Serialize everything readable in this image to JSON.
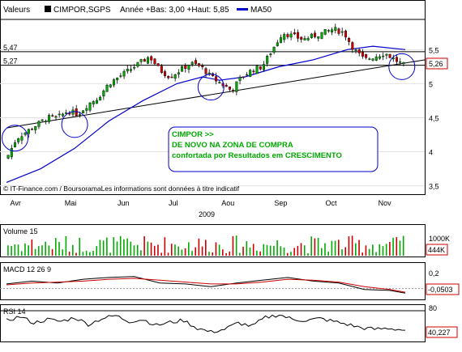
{
  "header": {
    "valeurs_label": "Valeurs",
    "symbol": "CIMPOR,SGPS",
    "range_text": "Année +Bas: 3,00 +Haut: 5,85",
    "ma_label": "MA50",
    "ma_color": "#0000cc"
  },
  "footer": {
    "credit": "© IT-Finance.com / BoursoramaLes informations sont données à titre indicatif"
  },
  "annotation": {
    "line1": "CIMPOR >>",
    "line2": "DE NOVO NA ZONA DE COMPRA",
    "line3": "confortada por Resultados em  CRESCIMENTO",
    "color": "#00aa00",
    "border_color": "#0000cc"
  },
  "chart_data": [
    {
      "type": "candlestick",
      "year_label": "2009",
      "x_labels": [
        "Avr",
        "Mai",
        "Jun",
        "Jul",
        "Aou",
        "Sep",
        "Oct",
        "Nov"
      ],
      "y_ticks": [
        "5,5",
        "5",
        "4,5",
        "4",
        "3,5"
      ],
      "y_tick_values": [
        5.5,
        5.0,
        4.5,
        4.0,
        3.5
      ],
      "ylim": [
        3.4,
        5.92
      ],
      "h_levels": [
        "5,47",
        "5,27"
      ],
      "h_level_values": [
        5.47,
        5.27
      ],
      "last_value": "5,26",
      "last_value_num": 5.26,
      "up_color": "#00aa00",
      "down_color": "#cc0000",
      "close_path": [
        [
          0,
          3.9
        ],
        [
          6,
          4.2
        ],
        [
          12,
          4.3
        ],
        [
          18,
          4.4
        ],
        [
          24,
          4.5
        ],
        [
          30,
          4.5
        ],
        [
          36,
          4.6
        ],
        [
          42,
          4.55
        ],
        [
          48,
          4.7
        ],
        [
          54,
          4.8
        ],
        [
          60,
          5.0
        ],
        [
          66,
          5.1
        ],
        [
          72,
          5.2
        ],
        [
          78,
          5.3
        ],
        [
          84,
          5.4
        ],
        [
          90,
          5.2
        ],
        [
          96,
          5.1
        ],
        [
          102,
          5.2
        ],
        [
          108,
          5.3
        ],
        [
          114,
          5.25
        ],
        [
          120,
          5.1
        ],
        [
          126,
          5.0
        ],
        [
          132,
          4.9
        ],
        [
          138,
          5.1
        ],
        [
          144,
          5.2
        ],
        [
          150,
          5.25
        ],
        [
          156,
          5.5
        ],
        [
          162,
          5.75
        ],
        [
          168,
          5.7
        ],
        [
          174,
          5.65
        ],
        [
          180,
          5.7
        ],
        [
          186,
          5.75
        ],
        [
          192,
          5.8
        ],
        [
          198,
          5.75
        ],
        [
          204,
          5.5
        ],
        [
          210,
          5.35
        ],
        [
          216,
          5.4
        ],
        [
          222,
          5.45
        ],
        [
          228,
          5.35
        ],
        [
          234,
          5.26
        ]
      ],
      "ma50_path": [
        [
          0,
          3.55
        ],
        [
          20,
          3.75
        ],
        [
          40,
          4.05
        ],
        [
          60,
          4.45
        ],
        [
          80,
          4.75
        ],
        [
          100,
          5.0
        ],
        [
          115,
          5.1
        ],
        [
          125,
          5.05
        ],
        [
          140,
          5.1
        ],
        [
          160,
          5.25
        ],
        [
          180,
          5.35
        ],
        [
          200,
          5.5
        ],
        [
          215,
          5.55
        ],
        [
          234,
          5.5
        ]
      ],
      "trendline": [
        [
          0,
          4.35
        ],
        [
          255,
          5.35
        ]
      ],
      "circles_at": [
        [
          5,
          4.2
        ],
        [
          40,
          4.4
        ],
        [
          120,
          4.95
        ],
        [
          232,
          5.25
        ]
      ]
    },
    {
      "type": "bar",
      "name": "Volume 15",
      "y_ticks": [
        "1000K",
        "444K"
      ],
      "ylim": [
        0,
        1000
      ],
      "last_value": "444K",
      "note": "daily volume bars, colored green/red per session"
    },
    {
      "type": "line",
      "name": "MACD 12 26 9",
      "y_ticks": [
        "0,2",
        "0"
      ],
      "ylim": [
        -0.1,
        0.25
      ],
      "last_value": "-0,0503",
      "macd": [
        [
          0,
          0.05
        ],
        [
          15,
          0.08
        ],
        [
          30,
          0.06
        ],
        [
          45,
          0.1
        ],
        [
          60,
          0.12
        ],
        [
          75,
          0.13
        ],
        [
          90,
          0.06
        ],
        [
          105,
          0.05
        ],
        [
          120,
          0.02
        ],
        [
          135,
          0.06
        ],
        [
          150,
          0.09
        ],
        [
          165,
          0.12
        ],
        [
          180,
          0.08
        ],
        [
          195,
          0.06
        ],
        [
          210,
          -0.01
        ],
        [
          225,
          -0.02
        ],
        [
          234,
          -0.05
        ]
      ],
      "signal": [
        [
          0,
          0.04
        ],
        [
          15,
          0.06
        ],
        [
          30,
          0.07
        ],
        [
          45,
          0.08
        ],
        [
          60,
          0.1
        ],
        [
          75,
          0.11
        ],
        [
          90,
          0.09
        ],
        [
          105,
          0.07
        ],
        [
          120,
          0.05
        ],
        [
          135,
          0.05
        ],
        [
          150,
          0.07
        ],
        [
          165,
          0.1
        ],
        [
          180,
          0.09
        ],
        [
          195,
          0.07
        ],
        [
          210,
          0.02
        ],
        [
          225,
          -0.01
        ],
        [
          234,
          -0.04
        ]
      ],
      "macd_color": "#000000",
      "signal_color": "#cc0000"
    },
    {
      "type": "line",
      "name": "RSI 14",
      "y_ticks": [
        "80"
      ],
      "ylim": [
        20,
        90
      ],
      "last_value": "40,227",
      "values": [
        [
          0,
          60
        ],
        [
          8,
          68
        ],
        [
          16,
          55
        ],
        [
          24,
          62
        ],
        [
          32,
          58
        ],
        [
          40,
          66
        ],
        [
          48,
          52
        ],
        [
          56,
          64
        ],
        [
          64,
          70
        ],
        [
          72,
          58
        ],
        [
          80,
          62
        ],
        [
          88,
          50
        ],
        [
          96,
          56
        ],
        [
          104,
          60
        ],
        [
          112,
          44
        ],
        [
          120,
          36
        ],
        [
          128,
          42
        ],
        [
          136,
          55
        ],
        [
          144,
          48
        ],
        [
          152,
          66
        ],
        [
          160,
          72
        ],
        [
          168,
          62
        ],
        [
          176,
          60
        ],
        [
          184,
          64
        ],
        [
          192,
          58
        ],
        [
          200,
          52
        ],
        [
          208,
          45
        ],
        [
          216,
          42
        ],
        [
          224,
          44
        ],
        [
          234,
          40
        ]
      ]
    }
  ]
}
